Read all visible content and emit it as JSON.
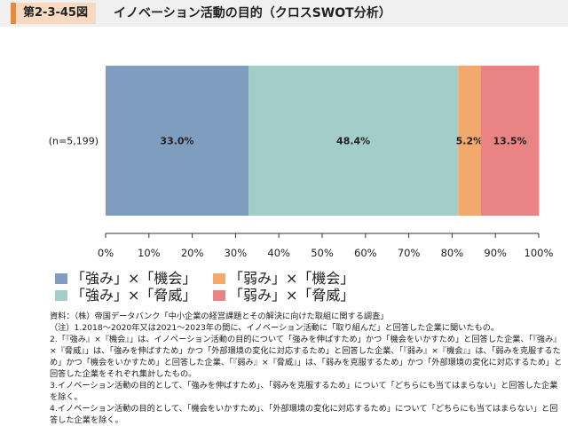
{
  "header": {
    "figure_number": "第2-3-45図",
    "title": "イノベーション活動の目的（クロスSWOT分析）"
  },
  "chart_data": {
    "type": "bar",
    "orientation": "horizontal",
    "stacked": true,
    "categories": [
      "(n=5,199)"
    ],
    "series": [
      {
        "name": "「強み」×「機会」",
        "values": [
          33.0
        ],
        "label": "33.0%",
        "color": "#7f9ebf"
      },
      {
        "name": "「強み」×「脅威」",
        "values": [
          48.4
        ],
        "label": "48.4%",
        "color": "#a3cdc8"
      },
      {
        "name": "「弱み」×「機会」",
        "values": [
          5.2
        ],
        "label": "5.2%",
        "color": "#f2aa6c"
      },
      {
        "name": "「弱み」×「脅威」",
        "values": [
          13.5
        ],
        "label": "13.5%",
        "color": "#ea8384"
      }
    ],
    "xlim": [
      0,
      100
    ],
    "xticks": [
      "0%",
      "10%",
      "20%",
      "30%",
      "40%",
      "50%",
      "60%",
      "70%",
      "80%",
      "90%",
      "100%"
    ],
    "grid": false,
    "legend_position": "bottom"
  },
  "notes": [
    "資料：（株）帝国データバンク「中小企業の経営課題とその解決に向けた取組に関する調査」",
    "（注）1.2018～2020年又は2021～2023年の間に、イノベーション活動に「取り組んだ」と回答した企業に聞いたもの。",
    "2.「『強み』×『機会』」は、イノベーション活動の目的について「強みを伸ばすため」かつ「機会をいかすため」と回答した企業、「『強み』×『脅威』」は、「強みを伸ばすため」かつ「外部環境の変化に対応するため」と回答した企業、「『弱み』×『機会』」は、「弱みを克服するため」かつ「機会をいかすため」と回答した企業、「『弱み』×『脅威』」は、「弱みを克服するため」かつ「外部環境の変化に対応するため」と回答した企業をそれぞれ集計したもの。",
    "3.イノベーション活動の目的として、「強みを伸ばすため」、「弱みを克服するため」について「どちらにも当てはまらない」と回答した企業を除く。",
    "4.イノベーション活動の目的として、「機会をいかすため」、「外部環境の変化に対応するため」について「どちらにも当てはまらない」と回答した企業を除く。"
  ]
}
